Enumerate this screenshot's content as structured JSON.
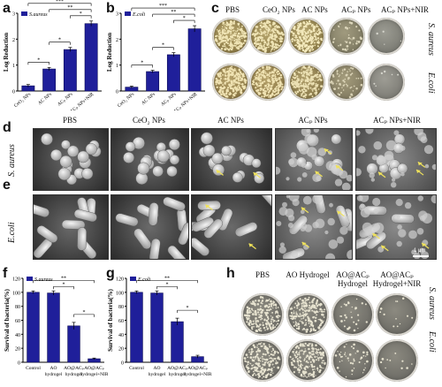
{
  "panel_letters": [
    "a",
    "b",
    "c",
    "d",
    "e",
    "f",
    "g",
    "h"
  ],
  "colors": {
    "bar": "#1f1f9a",
    "bar_edge": "#0c0c55",
    "arrow": "#f0e25a"
  },
  "chart_data": [
    {
      "id": "a",
      "type": "bar",
      "legend": "S.aureus",
      "ylabel": "Log Reduction",
      "ylim": [
        0,
        3
      ],
      "yticks": [
        "0",
        "1",
        "2",
        "3"
      ],
      "categories": [
        "CeO₂ NPs",
        "AC NPs",
        "ACₚ NPs",
        "ACₚ NPs+NIR"
      ],
      "values": [
        0.2,
        0.85,
        1.6,
        2.6
      ],
      "errors": [
        0.05,
        0.06,
        0.08,
        0.1
      ],
      "significance": [
        "*",
        "*",
        "*",
        "**",
        "***"
      ]
    },
    {
      "id": "b",
      "type": "bar",
      "legend": "E.coli",
      "ylabel": "Log Reduction",
      "ylim": [
        0,
        3
      ],
      "yticks": [
        "0",
        "1",
        "2",
        "3"
      ],
      "categories": [
        "CeO₂ NPs",
        "AC NPs",
        "ACₚ NPs",
        "ACₚ NPs+NIR"
      ],
      "values": [
        0.15,
        0.75,
        1.4,
        2.4
      ],
      "errors": [
        0.04,
        0.05,
        0.08,
        0.12
      ],
      "significance": [
        "*",
        "*",
        "*",
        "**",
        "***"
      ]
    },
    {
      "id": "f",
      "type": "bar",
      "legend": "S.aureus",
      "ylabel": "Survival of bacteria(%)",
      "ylim": [
        0,
        120
      ],
      "yticks": [
        "0",
        "20",
        "40",
        "60",
        "80",
        "100",
        "120"
      ],
      "categories": [
        "Control",
        "AO hydrogel",
        "AO@ACₚ hydrogel",
        "AO@ACₚ hydrogel+NIR"
      ],
      "values": [
        100,
        99,
        52,
        5
      ],
      "errors": [
        2,
        3,
        5,
        1
      ],
      "significance": [
        "**",
        "*",
        "*"
      ]
    },
    {
      "id": "g",
      "type": "bar",
      "legend": "E.coli",
      "ylabel": "Survival of bacteria(%)",
      "ylim": [
        0,
        120
      ],
      "yticks": [
        "0",
        "20",
        "40",
        "60",
        "80",
        "100",
        "120"
      ],
      "categories": [
        "Control",
        "AO hydrogel",
        "AO@ACₚ hydrogel",
        "AO@ACₚ hydrogel+NIR"
      ],
      "values": [
        100,
        99,
        58,
        8
      ],
      "errors": [
        2,
        3,
        5,
        2
      ],
      "significance": [
        "**",
        "*",
        "*"
      ]
    }
  ],
  "panel_c": {
    "headers": [
      "PBS",
      "CeO₂ NPs",
      "AC NPs",
      "ACₚ NPs",
      "ACₚ NPs+NIR"
    ],
    "rows": [
      "S. aureus",
      "E.coli"
    ]
  },
  "panel_de": {
    "headers": [
      "PBS",
      "CeO₂ NPs",
      "AC NPs",
      "ACₚ NPs",
      "ACₚ NPs+NIR"
    ],
    "rows": [
      "S. aureus",
      "E.coli"
    ],
    "scale_bar": "1 μm"
  },
  "panel_h": {
    "headers": [
      "PBS",
      "AO Hydrogel",
      "AO@ACₚ Hydrogel",
      "AO@ACₚ Hydrogel+NIR"
    ],
    "rows": [
      "S. aureus",
      "E.coli"
    ]
  }
}
